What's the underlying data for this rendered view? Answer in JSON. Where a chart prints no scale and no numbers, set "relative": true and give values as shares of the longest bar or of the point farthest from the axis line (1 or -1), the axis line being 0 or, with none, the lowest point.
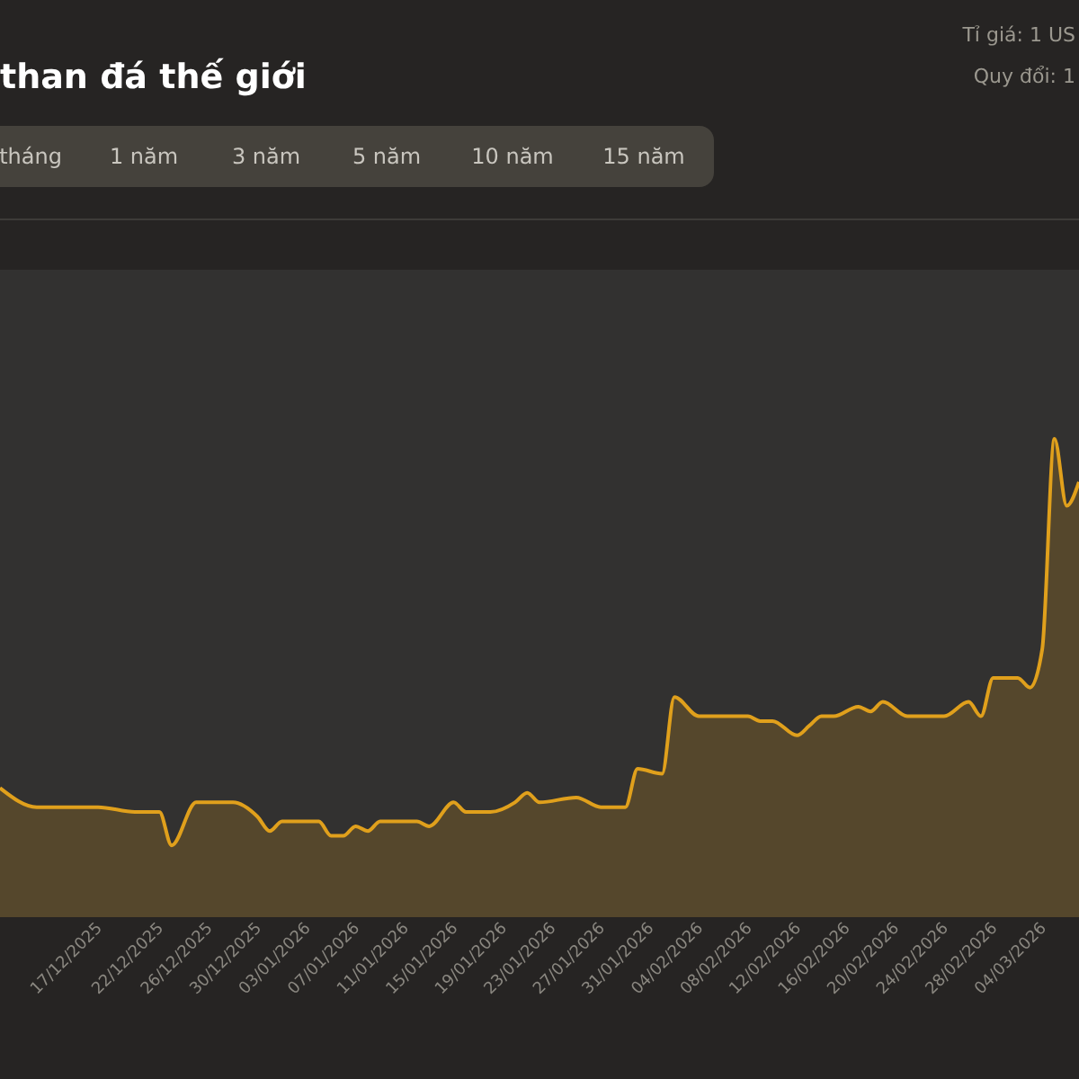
{
  "chart_data": {
    "type": "area",
    "title": "than đá thế giới",
    "relative": true,
    "annotations": [
      "tháng",
      "1 năm",
      "3 năm",
      "5 năm",
      "10 năm",
      "15 năm",
      "Tỉ giá: 1 US",
      "Quy đổi: 1"
    ],
    "xlim": [
      "2025-12-09",
      "2026-03-07"
    ],
    "xticks": [
      {
        "value": "2025-12-17",
        "label": "17/12/2025"
      },
      {
        "value": "2025-12-22",
        "label": "22/12/2025"
      },
      {
        "value": "2025-12-26",
        "label": "26/12/2025"
      },
      {
        "value": "2025-12-30",
        "label": "30/12/2025"
      },
      {
        "value": "2026-01-03",
        "label": "03/01/2026"
      },
      {
        "value": "2026-01-07",
        "label": "07/01/2026"
      },
      {
        "value": "2026-01-11",
        "label": "11/01/2026"
      },
      {
        "value": "2026-01-15",
        "label": "15/01/2026"
      },
      {
        "value": "2026-01-19",
        "label": "19/01/2026"
      },
      {
        "value": "2026-01-23",
        "label": "23/01/2026"
      },
      {
        "value": "2026-01-27",
        "label": "27/01/2026"
      },
      {
        "value": "2026-01-31",
        "label": "31/01/2026"
      },
      {
        "value": "2026-02-04",
        "label": "04/02/2026"
      },
      {
        "value": "2026-02-08",
        "label": "08/02/2026"
      },
      {
        "value": "2026-02-12",
        "label": "12/02/2026"
      },
      {
        "value": "2026-02-16",
        "label": "16/02/2026"
      },
      {
        "value": "2026-02-20",
        "label": "20/02/2026"
      },
      {
        "value": "2026-02-24",
        "label": "24/02/2026"
      },
      {
        "value": "2026-02-28",
        "label": "28/02/2026"
      },
      {
        "value": "2026-03-04",
        "label": "04/03/2026"
      }
    ],
    "x": [
      "2025-12-09",
      "2025-12-12",
      "2025-12-15",
      "2025-12-17",
      "2025-12-20",
      "2025-12-22",
      "2025-12-23",
      "2025-12-25",
      "2025-12-28",
      "2025-12-30",
      "2025-12-31",
      "2026-01-01",
      "2026-01-04",
      "2026-01-05",
      "2026-01-06",
      "2026-01-07",
      "2026-01-08",
      "2026-01-09",
      "2026-01-12",
      "2026-01-13",
      "2026-01-15",
      "2026-01-16",
      "2026-01-18",
      "2026-01-20",
      "2026-01-21",
      "2026-01-22",
      "2026-01-25",
      "2026-01-27",
      "2026-01-29",
      "2026-01-30",
      "2026-02-01",
      "2026-02-02",
      "2026-02-04",
      "2026-02-06",
      "2026-02-08",
      "2026-02-09",
      "2026-02-10",
      "2026-02-12",
      "2026-02-13",
      "2026-02-14",
      "2026-02-15",
      "2026-02-17",
      "2026-02-18",
      "2026-02-19",
      "2026-02-21",
      "2026-02-24",
      "2026-02-26",
      "2026-02-27",
      "2026-02-28",
      "2026-03-02",
      "2026-03-03",
      "2026-03-04",
      "2026-03-05",
      "2026-03-06",
      "2026-03-07"
    ],
    "series": [
      {
        "color": "#e0a01c",
        "values": [
          0.27,
          0.23,
          0.23,
          0.23,
          0.22,
          0.22,
          0.15,
          0.24,
          0.24,
          0.21,
          0.18,
          0.2,
          0.2,
          0.17,
          0.17,
          0.19,
          0.18,
          0.2,
          0.2,
          0.19,
          0.24,
          0.22,
          0.22,
          0.24,
          0.26,
          0.24,
          0.25,
          0.23,
          0.23,
          0.31,
          0.3,
          0.46,
          0.42,
          0.42,
          0.42,
          0.41,
          0.41,
          0.38,
          0.4,
          0.42,
          0.42,
          0.44,
          0.43,
          0.45,
          0.42,
          0.42,
          0.45,
          0.42,
          0.5,
          0.5,
          0.48,
          0.56,
          1,
          0.86,
          0.91
        ]
      }
    ]
  }
}
